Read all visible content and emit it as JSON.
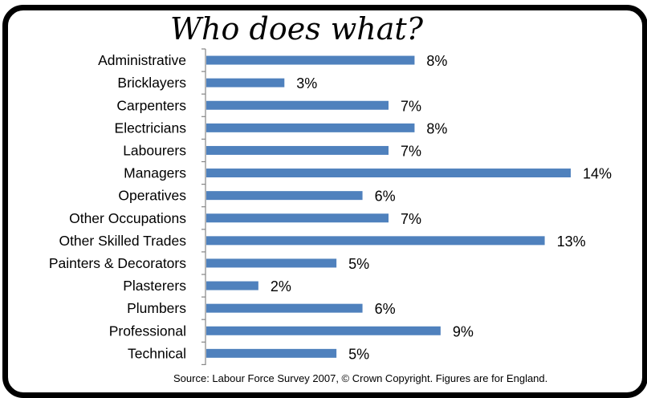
{
  "chart_data": {
    "type": "bar",
    "orientation": "horizontal",
    "title": "Who does what?",
    "source": "Source: Labour Force   Survey 2007, © Crown Copyright. Figures are for England.",
    "categories": [
      "Administrative",
      "Bricklayers",
      "Carpenters",
      "Electricians",
      "Labourers",
      "Managers",
      "Operatives",
      "Other Occupations",
      "Other Skilled Trades",
      "Painters & Decorators",
      "Plasterers",
      "Plumbers",
      "Professional",
      "Technical"
    ],
    "values": [
      8,
      3,
      7,
      8,
      7,
      14,
      6,
      7,
      13,
      5,
      2,
      6,
      9,
      5
    ],
    "value_labels": [
      "8%",
      "3%",
      "7%",
      "8%",
      "7%",
      "14%",
      "6%",
      "7%",
      "13%",
      "5%",
      "2%",
      "6%",
      "9%",
      "5%"
    ],
    "xlim": [
      0,
      14
    ],
    "bar_color": "#4f81bd",
    "grid": false,
    "legend": "none"
  }
}
